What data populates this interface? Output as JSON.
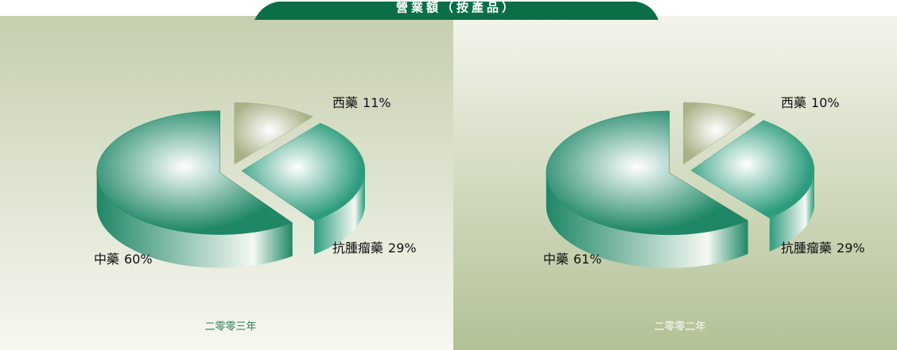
{
  "title": "營業額（按產品）",
  "chart_data": [
    {
      "type": "pie",
      "caption": "二零零三年",
      "categories": [
        "西藥",
        "抗腫瘤藥",
        "中藥"
      ],
      "values": [
        11,
        29,
        60
      ],
      "value_labels": [
        "11%",
        "29%",
        "60%"
      ],
      "colors": [
        "#a7b286",
        "#2c9c7c",
        "#1f8766"
      ]
    },
    {
      "type": "pie",
      "caption": "二零零二年",
      "categories": [
        "西藥",
        "抗腫瘤藥",
        "中藥"
      ],
      "values": [
        10,
        29,
        61
      ],
      "value_labels": [
        "10%",
        "29%",
        "61%"
      ],
      "colors": [
        "#a7b286",
        "#2c9c7c",
        "#1f8766"
      ]
    }
  ]
}
